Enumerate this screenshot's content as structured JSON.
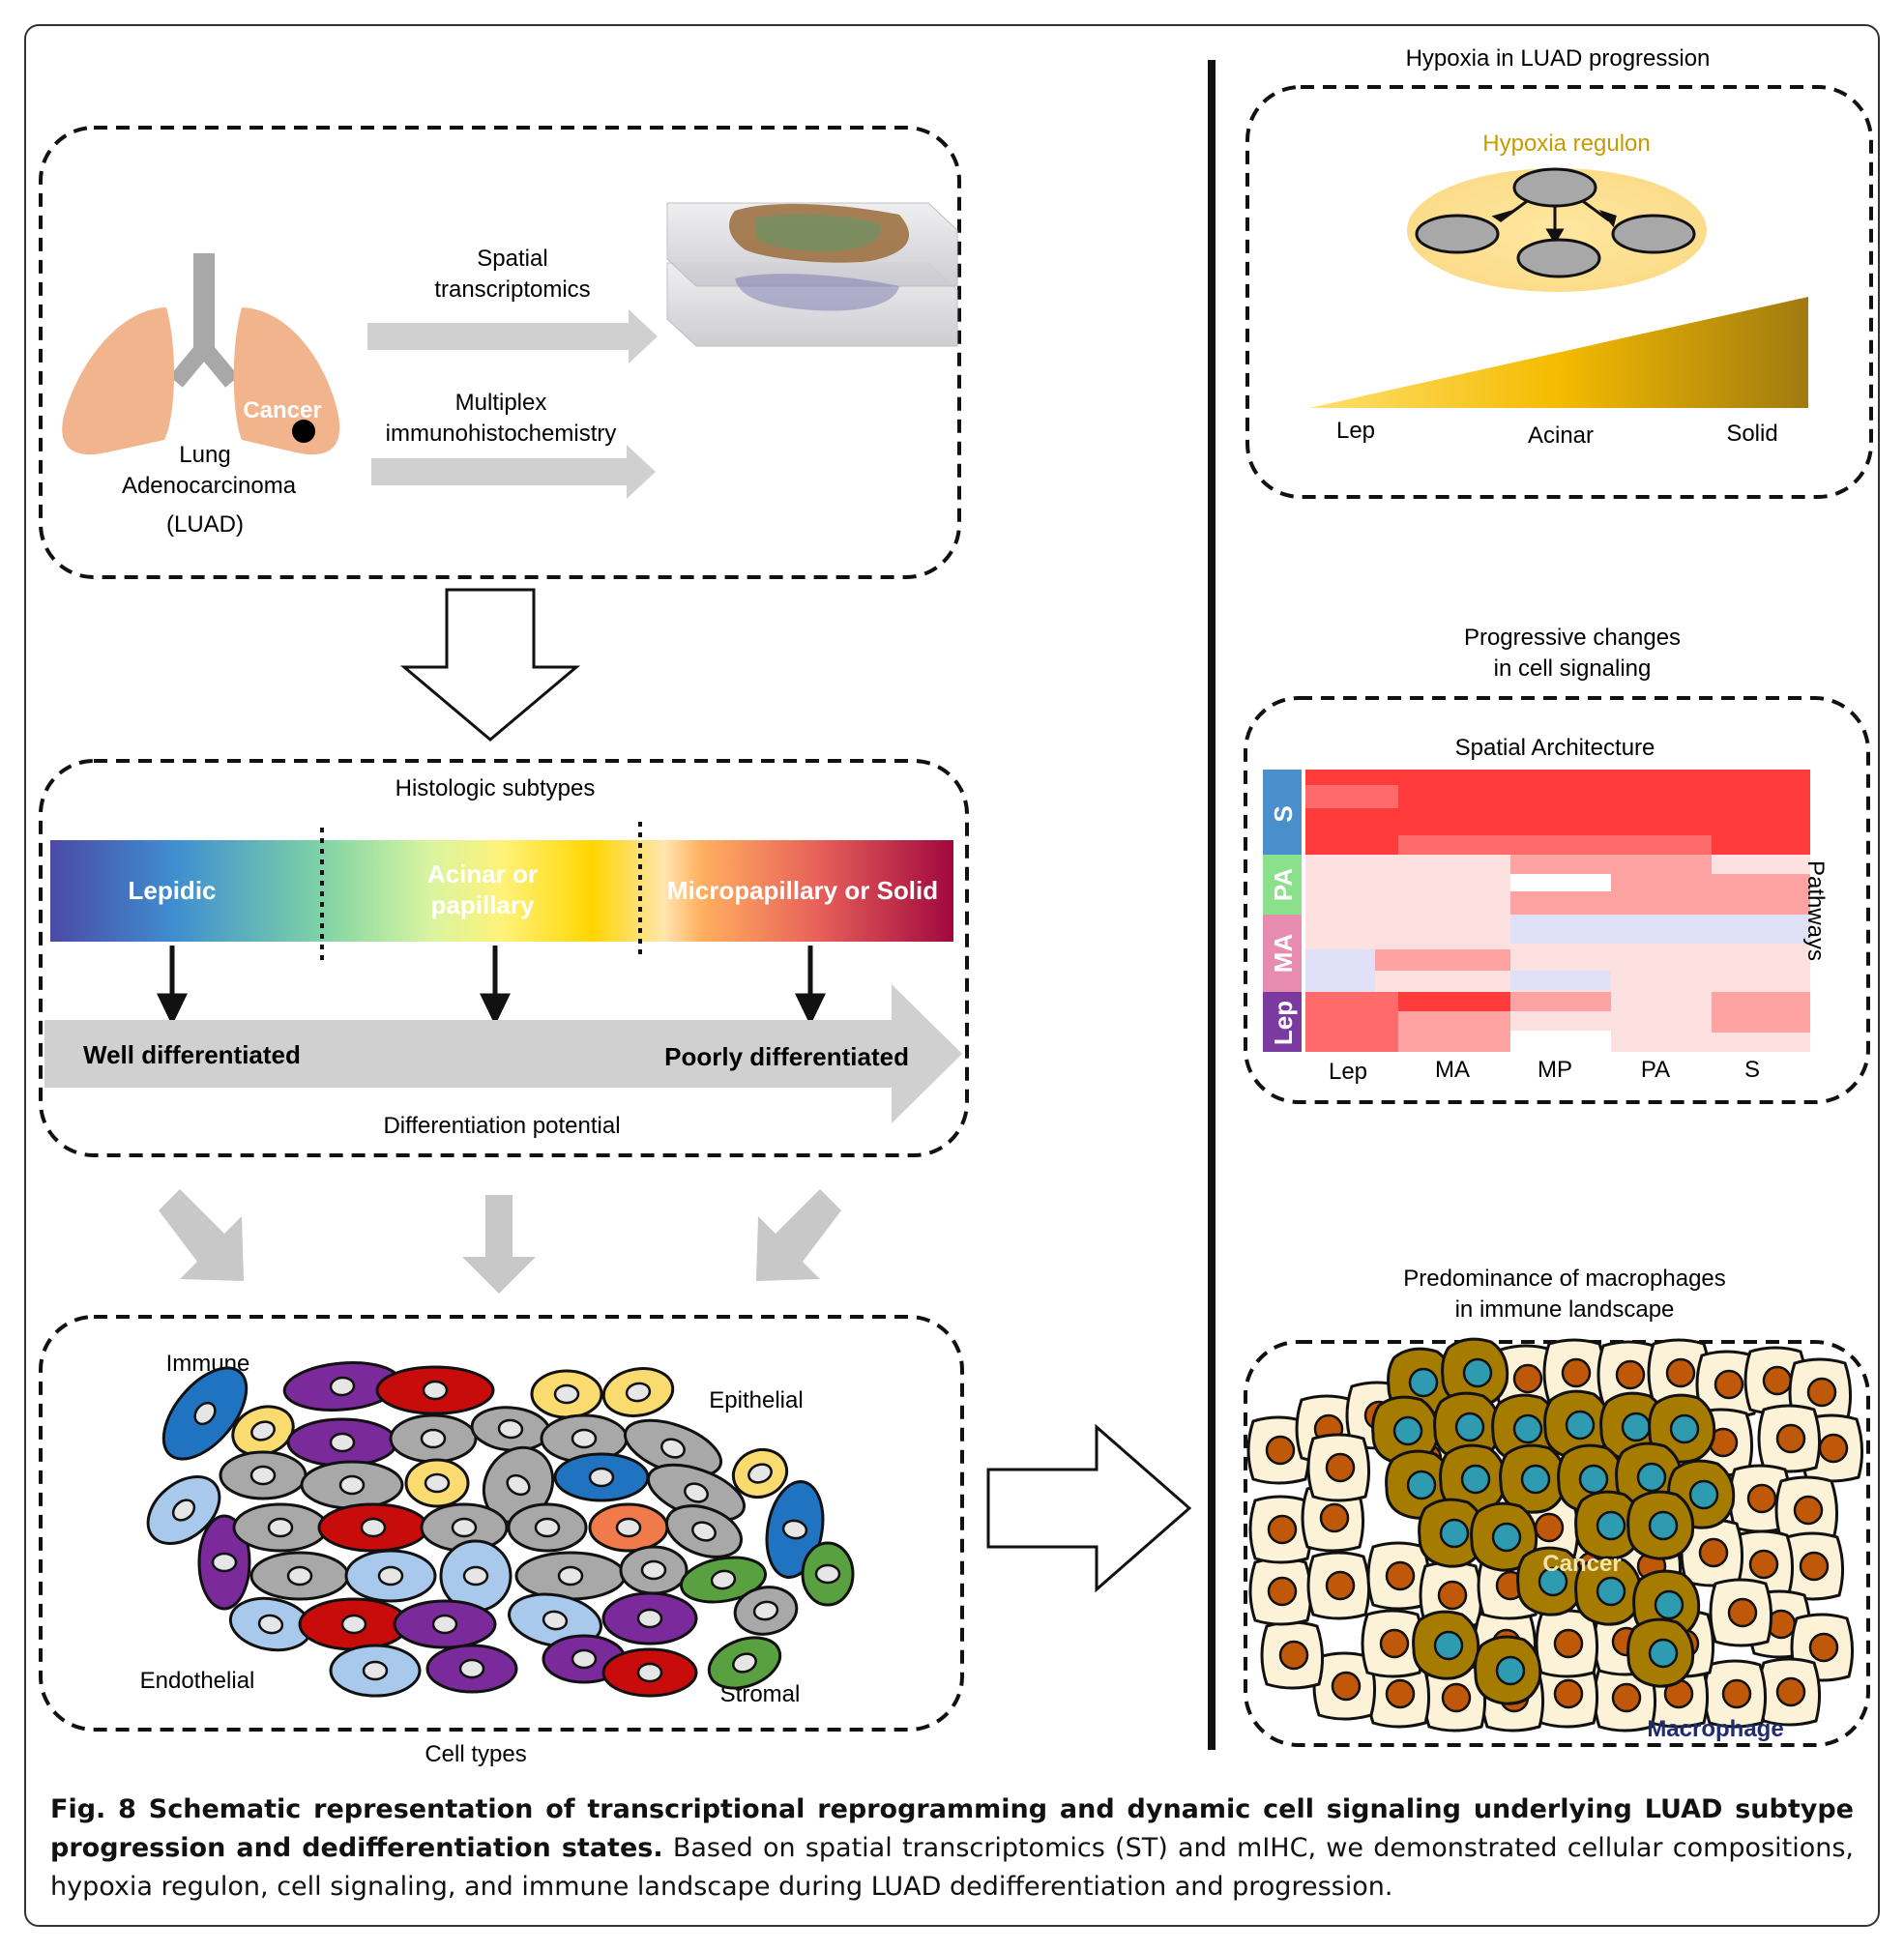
{
  "colors": {
    "lung": "#f2b48c",
    "accent": "#c99a00",
    "heatmap_red": "#ff3b3b",
    "heatmap_pink": "#fde0e0",
    "heatmap_blue": "#e0e0f8"
  },
  "workflow": {
    "lung_label_1": "Lung",
    "lung_label_2": "Adenocarcinoma",
    "lung_label_3": "(LUAD)",
    "cancer_label": "Cancer",
    "arrow1_line1": "Spatial",
    "arrow1_line2": "transcriptomics",
    "arrow2_line1": "Multiplex",
    "arrow2_line2": "immunohistochemistry"
  },
  "histology": {
    "title": "Histologic subtypes",
    "segment1": "Lepidic",
    "segment2_line1": "Acinar or",
    "segment2_line2": "papillary",
    "segment3": "Micropapillary or Solid",
    "well": "Well differentiated",
    "poorly": "Poorly differentiated",
    "axis_label": "Differentiation potential"
  },
  "cells": {
    "immune": "Immune",
    "epithelial": "Epithelial",
    "endothelial": "Endothelial",
    "stromal": "Stromal",
    "footer": "Cell types"
  },
  "hypoxia": {
    "section_title": "Hypoxia in LUAD progression",
    "regulon": "Hypoxia regulon",
    "ticks": [
      "Lep",
      "Acinar",
      "Solid"
    ]
  },
  "signaling": {
    "title_line1": "Progressive changes",
    "title_line2": "in cell signaling",
    "heatmap_title": "Spatial Architecture",
    "row_groups": [
      "S",
      "PA",
      "MA",
      "Lep"
    ],
    "columns": [
      "Lep",
      "MA",
      "MP",
      "PA",
      "S"
    ],
    "y_axis": "Pathways"
  },
  "immune_landscape": {
    "title_line1": "Predominance of macrophages",
    "title_line2": "in immune landscape",
    "cancer": "Cancer",
    "macrophage": "Macrophage"
  },
  "caption": {
    "bold": "Fig. 8 Schematic representation of transcriptional reprogramming and dynamic cell signaling underlying LUAD subtype progression and dedifferentiation states.",
    "text": " Based on spatial transcriptomics (ST) and mIHC, we demonstrated cellular compositions, hypoxia regulon, cell signaling, and immune landscape during LUAD dedifferentiation and progression."
  }
}
